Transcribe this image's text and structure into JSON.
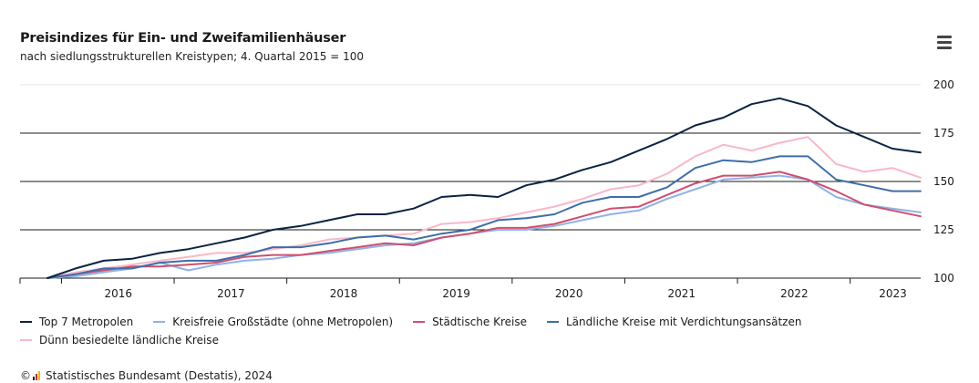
{
  "header": {
    "title": "Preisindizes für Ein- und Zweifamilienhäuser",
    "subtitle": "nach siedlungsstrukturellen Kreistypen; 4. Quartal 2015 = 100",
    "menu_icon": "hamburger-menu-icon"
  },
  "footer": {
    "copyright": "©",
    "source": "Statistisches Bundesamt (Destatis), 2024",
    "logo_icon": "destatis-logo-icon"
  },
  "chart_data": {
    "type": "line",
    "title": "Preisindizes für Ein- und Zweifamilienhäuser",
    "subtitle": "nach siedlungsstrukturellen Kreistypen; 4. Quartal 2015 = 100",
    "x_unit": "quarter",
    "x": [
      "2015-Q4",
      "2016-Q1",
      "2016-Q2",
      "2016-Q3",
      "2016-Q4",
      "2017-Q1",
      "2017-Q2",
      "2017-Q3",
      "2017-Q4",
      "2018-Q1",
      "2018-Q2",
      "2018-Q3",
      "2018-Q4",
      "2019-Q1",
      "2019-Q2",
      "2019-Q3",
      "2019-Q4",
      "2020-Q1",
      "2020-Q2",
      "2020-Q3",
      "2020-Q4",
      "2021-Q1",
      "2021-Q2",
      "2021-Q3",
      "2021-Q4",
      "2022-Q1",
      "2022-Q2",
      "2022-Q3",
      "2022-Q4",
      "2023-Q1",
      "2023-Q2",
      "2023-Q3"
    ],
    "x_tick_labels": [
      "2016",
      "2017",
      "2018",
      "2019",
      "2020",
      "2021",
      "2022",
      "2023"
    ],
    "y_ticks": [
      100,
      125,
      150,
      175,
      200
    ],
    "ylim": [
      100,
      200
    ],
    "grid": true,
    "legend_position": "bottom",
    "xlabel": "",
    "ylabel": "",
    "series": [
      {
        "name": "Top 7 Metropolen",
        "color": "#0b2343",
        "values": [
          100,
          105,
          109,
          110,
          113,
          115,
          118,
          121,
          125,
          127,
          130,
          133,
          133,
          136,
          142,
          143,
          142,
          148,
          151,
          156,
          160,
          166,
          172,
          179,
          183,
          190,
          193,
          189,
          179,
          173,
          167,
          165
        ]
      },
      {
        "name": "Kreisfreie Großstädte (ohne Metropolen)",
        "color": "#8fb3e8",
        "values": [
          100,
          101,
          103,
          105,
          108,
          104,
          107,
          109,
          110,
          112,
          113,
          115,
          117,
          118,
          121,
          123,
          125,
          125,
          127,
          130,
          133,
          135,
          141,
          146,
          151,
          152,
          153,
          151,
          142,
          138,
          136,
          134
        ]
      },
      {
        "name": "Städtische Kreise",
        "color": "#cf4f6e",
        "values": [
          100,
          102,
          104,
          106,
          106,
          107,
          108,
          111,
          112,
          112,
          114,
          116,
          118,
          117,
          121,
          123,
          126,
          126,
          128,
          132,
          136,
          137,
          143,
          149,
          153,
          153,
          155,
          151,
          145,
          138,
          135,
          132
        ]
      },
      {
        "name": "Ländliche Kreise mit Verdichtungsansätzen",
        "color": "#3d6ea8",
        "values": [
          100,
          102,
          105,
          105,
          108,
          109,
          109,
          112,
          116,
          116,
          118,
          121,
          122,
          120,
          123,
          125,
          130,
          131,
          133,
          139,
          142,
          142,
          147,
          157,
          161,
          160,
          163,
          163,
          151,
          148,
          145,
          145
        ]
      },
      {
        "name": "Dünn besiedelte ländliche Kreise",
        "color": "#f8b8c6",
        "values": [
          100,
          103,
          105,
          107,
          109,
          111,
          113,
          113,
          115,
          117,
          120,
          121,
          122,
          123,
          128,
          129,
          131,
          134,
          137,
          141,
          146,
          148,
          154,
          163,
          169,
          166,
          170,
          173,
          159,
          155,
          157,
          152
        ]
      }
    ]
  }
}
